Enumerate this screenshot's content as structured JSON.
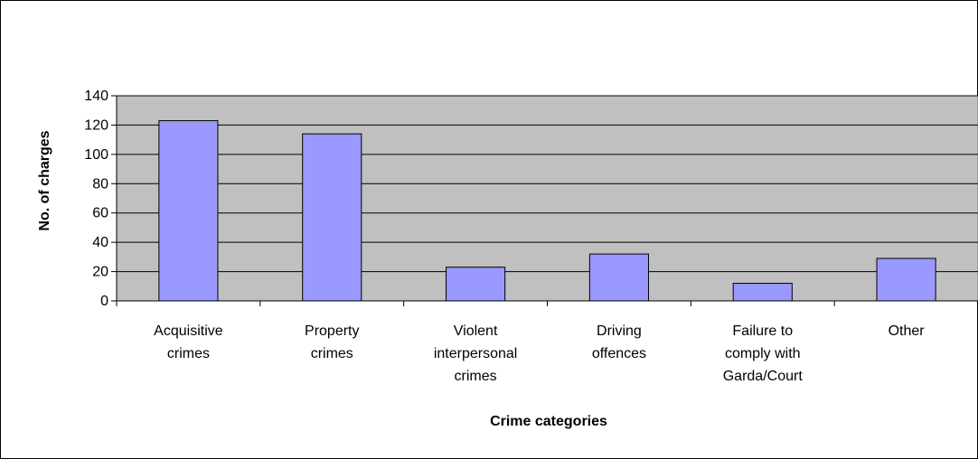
{
  "chart_data": {
    "type": "bar",
    "categories": [
      [
        "Acquisitive",
        "crimes"
      ],
      [
        "Property",
        "crimes"
      ],
      [
        "Violent",
        "interpersonal",
        "crimes"
      ],
      [
        "Driving",
        "offences"
      ],
      [
        "Failure to",
        "comply with",
        "Garda/Court"
      ],
      [
        "Other"
      ]
    ],
    "values": [
      123,
      114,
      23,
      32,
      12,
      29
    ],
    "title": "",
    "xlabel": "Crime categories",
    "ylabel": "No. of charges",
    "ylim": [
      0,
      140
    ],
    "yticks": [
      0,
      20,
      40,
      60,
      80,
      100,
      120,
      140
    ],
    "grid": true,
    "legend": "none",
    "colors": {
      "bar_fill": "#9999FF",
      "bar_stroke": "#000000",
      "plot_background": "#C0C0C0",
      "gridline": "#000000"
    }
  }
}
